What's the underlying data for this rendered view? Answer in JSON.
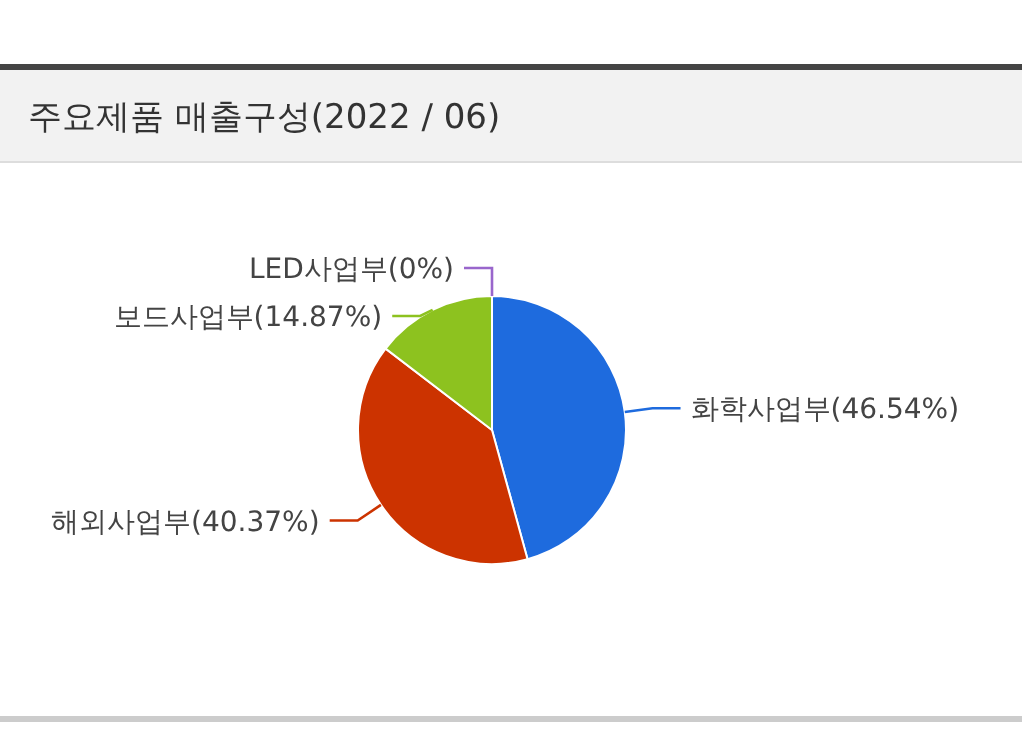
{
  "chart_data": {
    "type": "pie",
    "title": "주요제품 매출구성(2022 / 06)",
    "categories": [
      "화학사업부(46.54%)",
      "해외사업부(40.37%)",
      "보드사업부(14.87%)",
      "LED사업부(0%)"
    ],
    "values": [
      46.54,
      40.37,
      14.87,
      0
    ],
    "colors": [
      "#1e6bde",
      "#cc3300",
      "#8dc21f",
      "#9966cc"
    ]
  }
}
